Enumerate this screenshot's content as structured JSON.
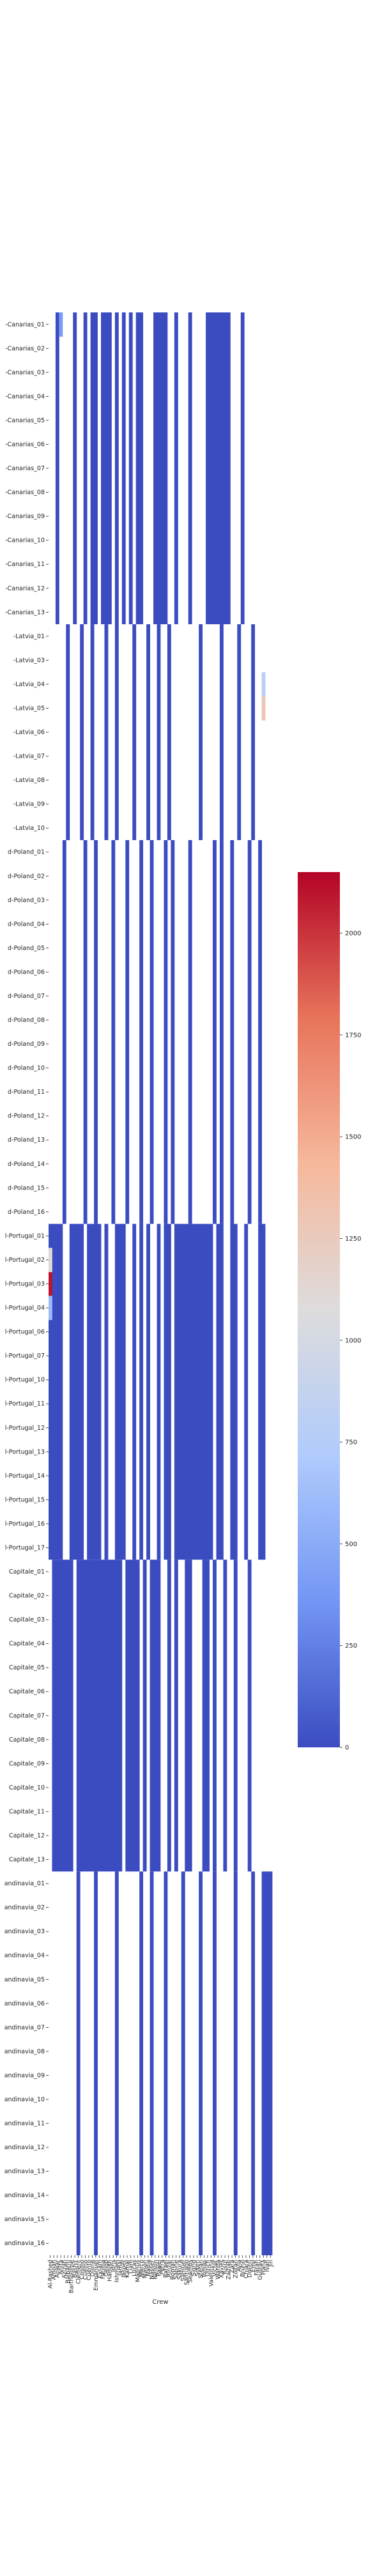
{
  "chart_data": {
    "type": "heatmap",
    "title": "",
    "xlabel": "Crew",
    "ylabel": "",
    "columns": [
      "Al-Rashed",
      "Amoah",
      "Anwar",
      "Anita",
      "Azizah",
      "Balbanti",
      "Bartholome",
      "Bashir",
      "Clement",
      "Cosmo",
      "Cuelho",
      "Cuento",
      "Dione",
      "Emmanuel",
      "Eyram",
      "Fatima",
      "Geigo",
      "Hamish",
      "Idris",
      "Ishmael",
      "Jamal",
      "Jasper",
      "Kamal",
      "Liam",
      "Lucas",
      "Magnus",
      "Marco",
      "Mason",
      "Nadia",
      "Nasser",
      "Nelson",
      "Pawel",
      "Petra",
      "Rafael",
      "Rinzai",
      "Roman",
      "Sabine",
      "Sakura",
      "Samuel",
      "Santiago",
      "Seamus",
      "Sigrid",
      "Soren",
      "Stefan",
      "Tomas",
      "Ulrich",
      "Valentina",
      "Victor",
      "Wanda",
      "Xavier",
      "Yusuf",
      "Zainab",
      "Zara",
      "Zoltan",
      "Ayla",
      "Bruno",
      "Chiara",
      "Dmitri",
      "Emil",
      "Farah",
      "Gustav",
      "Hana",
      "Ivan",
      "Jin"
    ],
    "row_groups": [
      {
        "name": "Canarias",
        "rows": [
          "-Canarias_01",
          "-Canarias_02",
          "-Canarias_03",
          "-Canarias_04",
          "-Canarias_05",
          "-Canarias_06",
          "-Canarias_07",
          "-Canarias_08",
          "-Canarias_09",
          "-Canarias_10",
          "-Canarias_11",
          "-Canarias_12",
          "-Canarias_13"
        ]
      },
      {
        "name": "Latvia",
        "rows": [
          "-Latvia_01",
          "-Latvia_03",
          "-Latvia_04",
          "-Latvia_05",
          "-Latvia_06",
          "-Latvia_07",
          "-Latvia_08",
          "-Latvia_09",
          "-Latvia_10"
        ]
      },
      {
        "name": "Poland",
        "rows": [
          "d-Poland_01",
          "d-Poland_02",
          "d-Poland_03",
          "d-Poland_04",
          "d-Poland_05",
          "d-Poland_06",
          "d-Poland_07",
          "d-Poland_08",
          "d-Poland_09",
          "d-Poland_10",
          "d-Poland_11",
          "d-Poland_12",
          "d-Poland_13",
          "d-Poland_14",
          "d-Poland_15",
          "d-Poland_16"
        ]
      },
      {
        "name": "Portugal",
        "rows": [
          "l-Portugal_01",
          "l-Portugal_02",
          "l-Portugal_03",
          "l-Portugal_04",
          "l-Portugal_06",
          "l-Portugal_07",
          "l-Portugal_10",
          "l-Portugal_11",
          "l-Portugal_12",
          "l-Portugal_13",
          "l-Portugal_14",
          "l-Portugal_15",
          "l-Portugal_16",
          "l-Portugal_17"
        ]
      },
      {
        "name": "Capitale",
        "rows": [
          "Capitale_01",
          "Capitale_02",
          "Capitale_03",
          "Capitale_04",
          "Capitale_05",
          "Capitale_06",
          "Capitale_07",
          "Capitale_08",
          "Capitale_09",
          "Capitale_10",
          "Capitale_11",
          "Capitale_12",
          "Capitale_13"
        ]
      },
      {
        "name": "Scandinavia",
        "rows": [
          "andinavia_01",
          "andinavia_02",
          "andinavia_03",
          "andinavia_04",
          "andinavia_05",
          "andinavia_06",
          "andinavia_07",
          "andinavia_08",
          "andinavia_09",
          "andinavia_10",
          "andinavia_11",
          "andinavia_12",
          "andinavia_13",
          "andinavia_14",
          "andinavia_15",
          "andinavia_16"
        ]
      }
    ],
    "active_columns": [
      [
        2,
        7,
        10,
        12,
        13,
        15,
        16,
        17,
        19,
        21,
        23,
        25,
        26,
        30,
        31,
        32,
        33,
        36,
        40,
        45,
        46,
        47,
        48,
        49,
        50,
        51,
        55
      ],
      [
        5,
        9,
        12,
        16,
        19,
        24,
        28,
        31,
        34,
        43,
        49,
        54,
        58
      ],
      [
        4,
        10,
        13,
        18,
        22,
        26,
        29,
        33,
        35,
        40,
        47,
        49,
        52,
        57,
        60
      ],
      [
        0,
        1,
        2,
        3,
        6,
        7,
        8,
        9,
        11,
        12,
        13,
        14,
        16,
        19,
        20,
        21,
        24,
        26,
        28,
        31,
        33,
        34,
        36,
        37,
        38,
        39,
        40,
        41,
        42,
        43,
        44,
        45,
        46,
        48,
        49,
        52,
        53,
        56,
        60,
        61
      ],
      [
        1,
        2,
        3,
        4,
        5,
        6,
        8,
        9,
        10,
        11,
        12,
        13,
        14,
        15,
        16,
        17,
        18,
        19,
        20,
        22,
        23,
        24,
        25,
        27,
        29,
        30,
        31,
        34,
        36,
        39,
        40,
        44,
        45,
        47,
        50,
        53,
        57
      ],
      [
        8,
        13,
        19,
        26,
        29,
        33,
        38,
        43,
        47,
        53,
        58,
        61,
        62,
        63
      ]
    ],
    "blank_cell_value": null,
    "active_cell_value": 0,
    "hot_cells": [
      {
        "row": "l-Portugal_03",
        "column": "Al-Rashed",
        "value": 2100
      },
      {
        "row": "l-Portugal_02",
        "column": "Al-Rashed",
        "value": 1100
      },
      {
        "row": "l-Portugal_04",
        "column": "Al-Rashed",
        "value": 600
      },
      {
        "row": "-Canarias_01",
        "column": "Anita",
        "value": 400
      },
      {
        "row": "-Latvia_05",
        "column": "Hana",
        "value": 1300
      },
      {
        "row": "-Latvia_04",
        "column": "Hana",
        "value": 800
      }
    ],
    "colorbar": {
      "min": 0,
      "max": 2150,
      "ticks": [
        0,
        250,
        500,
        750,
        1000,
        1250,
        1500,
        1750,
        2000
      ],
      "colors": [
        "#3b4cc0",
        "#7396f5",
        "#b0cbfc",
        "#dddcdc",
        "#f6b89c",
        "#e7745b",
        "#b40426"
      ],
      "orientation": "vertical",
      "placement": "right"
    }
  }
}
